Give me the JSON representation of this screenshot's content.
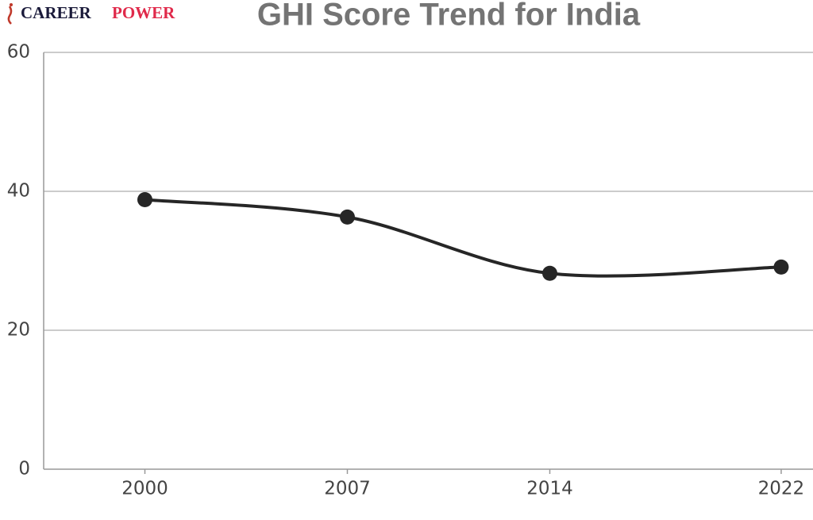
{
  "brand": [
    "CAREER",
    "POWER"
  ],
  "chart_data": {
    "type": "line",
    "title": "GHI Score Trend for India",
    "x": [
      2000,
      2007,
      2014,
      2022
    ],
    "series": [
      {
        "color": "#262626",
        "values": [
          38.8,
          36.3,
          28.2,
          29.1
        ]
      }
    ],
    "xlim": [
      1996.5,
      2023.1
    ],
    "xticks": [
      2000,
      2007,
      2014,
      2022
    ],
    "ylim": [
      0,
      60
    ],
    "yticks": [
      0,
      20,
      40,
      60
    ],
    "grid": true,
    "smooth": true
  }
}
